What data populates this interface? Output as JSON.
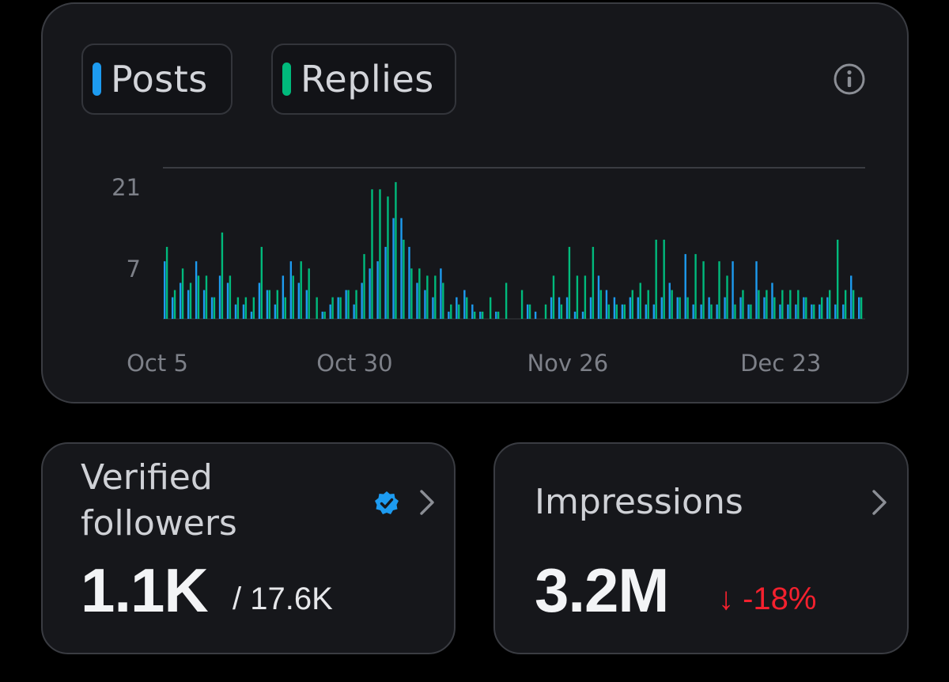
{
  "colors": {
    "posts": "#1d9bf0",
    "replies": "#00ba7c",
    "negative": "#f4212e",
    "verified": "#1d9bf0"
  },
  "legend": {
    "posts_label": "Posts",
    "replies_label": "Replies"
  },
  "chart_data": {
    "type": "bar",
    "title": "",
    "xlabel": "",
    "ylabel": "",
    "ylim": [
      0,
      21
    ],
    "yticks": [
      7,
      21
    ],
    "ytick_labels": [
      "7",
      "21"
    ],
    "x_tick_labels": [
      {
        "label": "Oct 5",
        "index": 0
      },
      {
        "label": "Oct 30",
        "index": 25
      },
      {
        "label": "Nov 26",
        "index": 52
      },
      {
        "label": "Dec 23",
        "index": 79
      }
    ],
    "grid": true,
    "series": [
      {
        "name": "Posts",
        "values": [
          8,
          3,
          5,
          4,
          8,
          4,
          3,
          6,
          5,
          2,
          2,
          1,
          5,
          4,
          2,
          6,
          8,
          5,
          4,
          0,
          1,
          2,
          3,
          4,
          2,
          5,
          7,
          8,
          10,
          14,
          14,
          10,
          5,
          4,
          3,
          7,
          1,
          3,
          4,
          2,
          1,
          0,
          1,
          0,
          0,
          0,
          2,
          1,
          0,
          3,
          3,
          3,
          1,
          1,
          3,
          6,
          4,
          3,
          2,
          3,
          3,
          2,
          2,
          3,
          5,
          3,
          9,
          2,
          2,
          3,
          2,
          3,
          8,
          3,
          2,
          8,
          3,
          5,
          2,
          2,
          2,
          3,
          2,
          2,
          3,
          2,
          2,
          6,
          3
        ]
      },
      {
        "name": "Replies",
        "values": [
          10,
          4,
          7,
          5,
          6,
          6,
          3,
          12,
          6,
          3,
          3,
          3,
          10,
          4,
          4,
          3,
          6,
          8,
          7,
          3,
          1,
          3,
          3,
          4,
          4,
          9,
          18,
          18,
          17,
          19,
          11,
          7,
          7,
          6,
          6,
          5,
          2,
          2,
          3,
          1,
          1,
          3,
          1,
          5,
          0,
          4,
          2,
          0,
          2,
          6,
          2,
          10,
          6,
          6,
          10,
          4,
          2,
          2,
          2,
          4,
          5,
          4,
          11,
          11,
          4,
          3,
          3,
          9,
          8,
          2,
          8,
          6,
          2,
          4,
          2,
          4,
          4,
          3,
          4,
          4,
          4,
          3,
          2,
          3,
          4,
          11,
          4,
          4,
          3
        ]
      }
    ]
  },
  "followers": {
    "title": "Verified followers",
    "value": "1.1K",
    "total": "/ 17.6K"
  },
  "impressions": {
    "title": "Impressions",
    "value": "3.2M",
    "change": "↓ -18%"
  }
}
